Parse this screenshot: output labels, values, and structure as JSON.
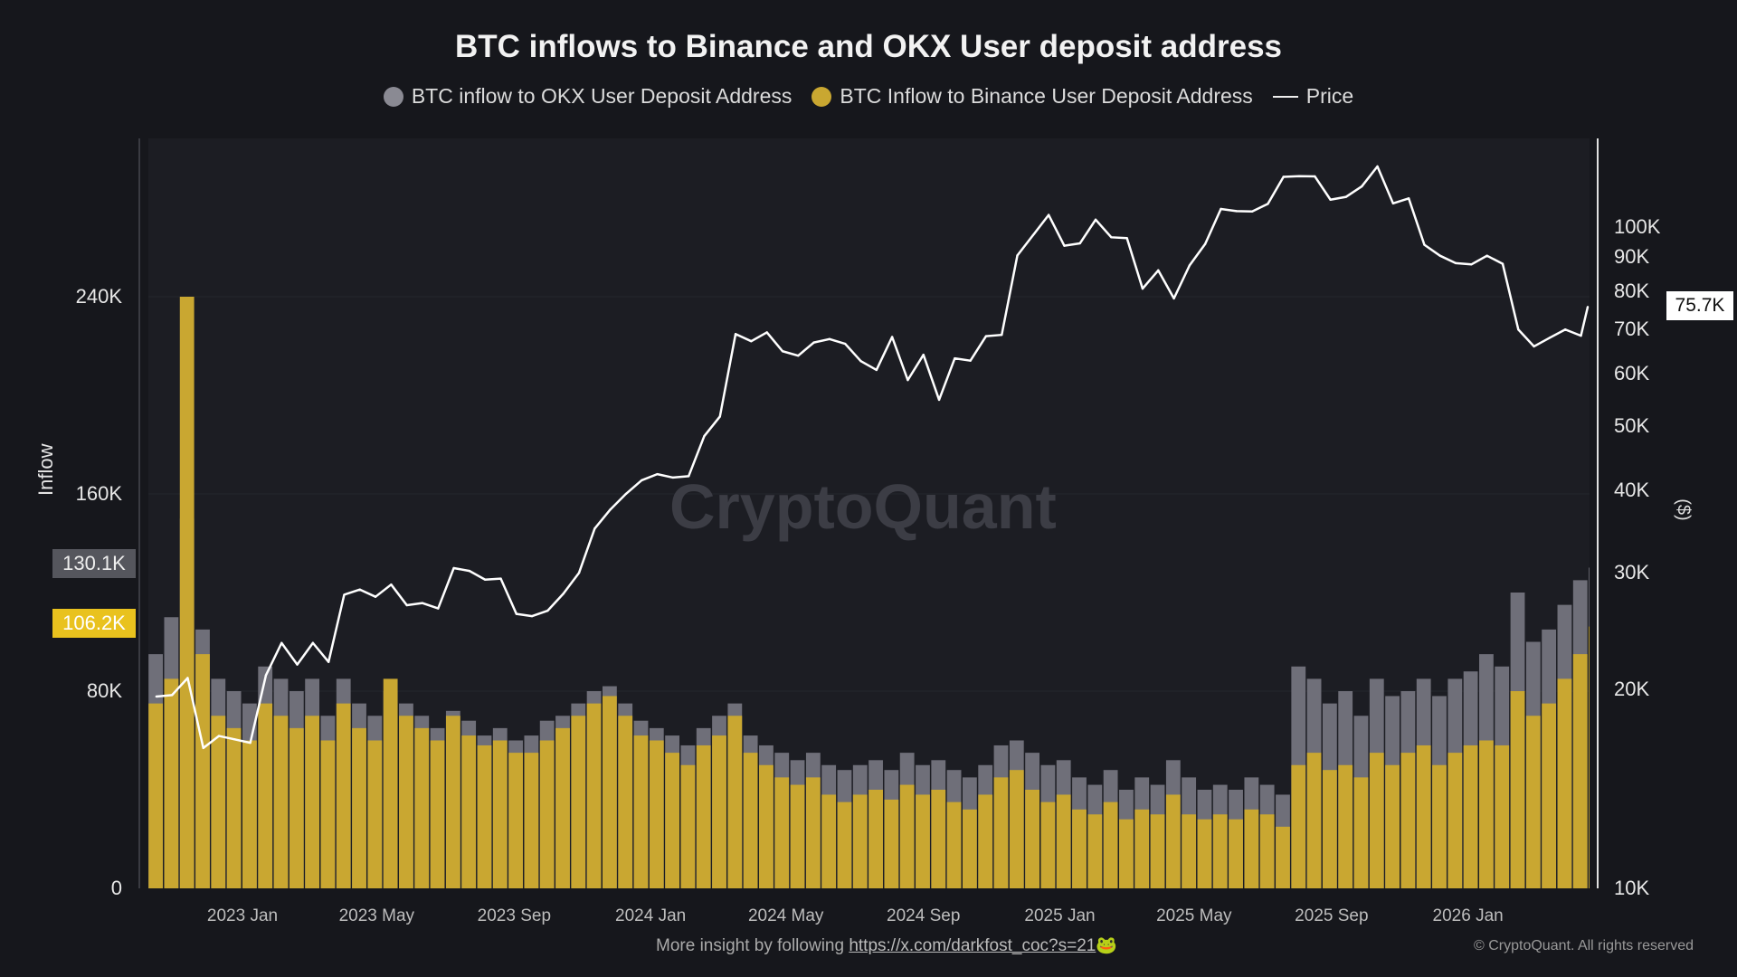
{
  "title": "BTC inflows to Binance and OKX User deposit address",
  "legend": [
    {
      "label": "BTC inflow to OKX User Deposit Address",
      "color": "#8a8a93"
    },
    {
      "label": "BTC Inflow to Binance User Deposit Address",
      "color": "#c9a731"
    },
    {
      "label": "Price",
      "color": "#ffffff"
    }
  ],
  "watermark": "CryptoQuant",
  "footer": {
    "text": "More insight by following",
    "link": "https://x.com/darkfost_coc?s=21",
    "emoji": "🐸",
    "copyright": "© CryptoQuant. All rights reserved"
  },
  "chart_data": {
    "type": "bar+line",
    "title": "BTC inflows to Binance and OKX User deposit address",
    "ylabel_left": "Inflow",
    "ylabel_right": "($)",
    "ylim_left": [
      0,
      304
    ],
    "ylim_right": [
      10,
      130
    ],
    "right_scale": "log",
    "left_ticks": [
      "0",
      "80K",
      "160K",
      "240K"
    ],
    "left_tick_values": [
      0,
      80,
      160,
      240
    ],
    "right_ticks": [
      "10K",
      "20K",
      "30K",
      "40K",
      "50K",
      "60K",
      "70K",
      "80K",
      "90K",
      "100K"
    ],
    "right_tick_values": [
      10,
      20,
      30,
      40,
      50,
      60,
      70,
      80,
      90,
      100
    ],
    "x_ticks": [
      "2023 Jan",
      "2023 May",
      "2023 Sep",
      "2024 Jan",
      "2024 May",
      "2024 Sep",
      "2025 Jan",
      "2025 May",
      "2025 Sep",
      "2026 Jan"
    ],
    "x_tick_dates": [
      "2023-01-01",
      "2023-05-01",
      "2023-09-01",
      "2024-01-01",
      "2024-05-01",
      "2024-09-01",
      "2025-01-01",
      "2025-05-01",
      "2025-09-01",
      "2026-01-01"
    ],
    "grid": true,
    "legend_position": "top",
    "last_values": {
      "okx": "130.1K",
      "binance": "106.2K",
      "price": "75.7K"
    },
    "x_start": "2022-10-09",
    "x_step_days": 14,
    "series": [
      {
        "name": "BTC inflow to OKX User Deposit Address",
        "type": "bar",
        "unit": "K BTC",
        "color": "#6f6f79",
        "values": [
          95,
          110,
          150,
          105,
          85,
          80,
          75,
          90,
          85,
          80,
          85,
          70,
          85,
          75,
          70,
          80,
          75,
          70,
          65,
          72,
          68,
          62,
          65,
          60,
          62,
          68,
          70,
          75,
          80,
          82,
          75,
          68,
          65,
          62,
          58,
          65,
          70,
          75,
          62,
          58,
          55,
          52,
          55,
          50,
          48,
          50,
          52,
          48,
          55,
          50,
          52,
          48,
          45,
          50,
          58,
          60,
          55,
          50,
          52,
          45,
          42,
          48,
          40,
          45,
          42,
          52,
          45,
          40,
          42,
          40,
          45,
          42,
          38,
          90,
          85,
          75,
          80,
          70,
          85,
          78,
          80,
          85,
          78,
          85,
          88,
          95,
          90,
          120,
          100,
          105,
          115,
          125,
          130.1
        ]
      },
      {
        "name": "BTC Inflow to Binance User Deposit Address",
        "type": "bar",
        "unit": "K BTC",
        "color": "#c9a731",
        "values": [
          75,
          85,
          240,
          95,
          70,
          65,
          60,
          75,
          70,
          65,
          70,
          60,
          75,
          65,
          60,
          85,
          70,
          65,
          60,
          70,
          62,
          58,
          60,
          55,
          55,
          60,
          65,
          70,
          75,
          78,
          70,
          62,
          60,
          55,
          50,
          58,
          62,
          70,
          55,
          50,
          45,
          42,
          45,
          38,
          35,
          38,
          40,
          36,
          42,
          38,
          40,
          35,
          32,
          38,
          45,
          48,
          40,
          35,
          38,
          32,
          30,
          35,
          28,
          32,
          30,
          38,
          30,
          28,
          30,
          28,
          32,
          30,
          25,
          50,
          55,
          48,
          50,
          45,
          55,
          50,
          55,
          58,
          50,
          55,
          58,
          60,
          58,
          80,
          70,
          75,
          85,
          95,
          106.2
        ]
      },
      {
        "name": "Price",
        "type": "line",
        "unit": "K USD",
        "color": "#ffffff",
        "values": [
          19.5,
          19.6,
          20.8,
          16.3,
          17.0,
          16.8,
          16.6,
          21.0,
          23.5,
          21.8,
          23.5,
          22.0,
          27.8,
          28.3,
          27.6,
          28.8,
          26.8,
          27.0,
          26.5,
          30.5,
          30.2,
          29.3,
          29.4,
          26.0,
          25.8,
          26.3,
          27.9,
          30.0,
          35.0,
          37.4,
          39.5,
          41.4,
          42.3,
          41.8,
          42.0,
          48.3,
          51.7,
          68.9,
          67.2,
          69.3,
          64.9,
          63.9,
          66.9,
          67.7,
          66.6,
          62.7,
          60.8,
          68.2,
          58.7,
          64.1,
          54.8,
          63.3,
          62.8,
          68.4,
          68.7,
          90.6,
          97.2,
          104.3,
          93.7,
          94.5,
          102.6,
          96.5,
          96.2,
          80.7,
          86.0,
          78.0,
          87.5,
          94.3,
          106.5,
          105.7,
          105.6,
          108.4,
          119.1,
          119.4,
          119.3,
          110.0,
          111.1,
          115.2,
          123.5,
          108.6,
          110.5,
          94.0,
          90.5,
          88.2,
          87.8,
          90.5,
          88.0,
          70.0,
          66.0,
          68.0,
          70.0,
          68.5,
          75.7
        ]
      }
    ]
  }
}
